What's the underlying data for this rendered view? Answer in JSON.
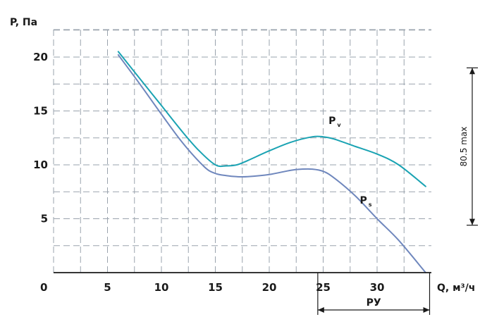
{
  "chart_data": {
    "type": "line",
    "xlabel": "Q, м³/ч",
    "ylabel": "P, Па",
    "x_origin_label": "0",
    "xlim": [
      0,
      35
    ],
    "ylim": [
      0,
      22
    ],
    "x_ticks": [
      {
        "value": 5,
        "label": "5"
      },
      {
        "value": 10,
        "label": "10"
      },
      {
        "value": 15,
        "label": "15"
      },
      {
        "value": 20,
        "label": "20"
      },
      {
        "value": 25,
        "label": "25"
      },
      {
        "value": 30,
        "label": "30"
      }
    ],
    "y_ticks": [
      {
        "value": 5,
        "label": "5"
      },
      {
        "value": 10,
        "label": "10"
      },
      {
        "value": 15,
        "label": "15"
      },
      {
        "value": 20,
        "label": "20"
      }
    ],
    "grid": true,
    "grid_x_step": 2.5,
    "grid_y_step": 2.5,
    "series": [
      {
        "name_main": "P",
        "name_sub": "v",
        "color": "#1aa3b3",
        "x": [
          6,
          8,
          10,
          12,
          13.5,
          15,
          16,
          17,
          18,
          20,
          22,
          24,
          25,
          26,
          28,
          30,
          32,
          34.5
        ],
        "y": [
          20.5,
          18.0,
          15.5,
          13.0,
          11.3,
          10.0,
          9.9,
          10.0,
          10.4,
          11.3,
          12.1,
          12.6,
          12.6,
          12.4,
          11.7,
          11.0,
          10.0,
          8.0
        ]
      },
      {
        "name_main": "P",
        "name_sub": "s",
        "color": "#6f87bd",
        "x": [
          6,
          8,
          10,
          12,
          14,
          15,
          16,
          17,
          18,
          20,
          22,
          23,
          24,
          25,
          26,
          28,
          30,
          32,
          34.5
        ],
        "y": [
          20.2,
          17.5,
          14.7,
          12.0,
          9.8,
          9.2,
          9.0,
          8.9,
          8.9,
          9.1,
          9.5,
          9.6,
          9.6,
          9.4,
          8.8,
          7.1,
          5.0,
          3.0,
          0.0
        ]
      }
    ],
    "annotations": {
      "vertical_dimension": {
        "label": "80.5 max",
        "from_y": 0,
        "to_y": 19
      },
      "ru_range": {
        "label": "РУ",
        "from_x": 24.5,
        "to_x": 35
      }
    }
  }
}
